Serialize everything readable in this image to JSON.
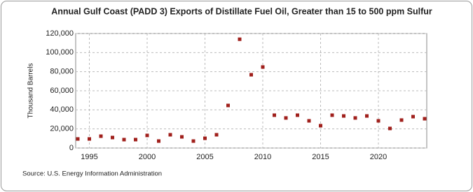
{
  "chart_data": {
    "type": "scatter",
    "title": "Annual Gulf Coast (PADD 3) Exports of Distillate Fuel Oil, Greater than 15 to 500 ppm Sulfur",
    "y_label": "Thousand Barrels",
    "source": "Source: U.S. Energy Information Administration",
    "color": "#a0201c",
    "grid": true,
    "x": [
      1994,
      1995,
      1996,
      1997,
      1998,
      1999,
      2000,
      2001,
      2002,
      2003,
      2004,
      2005,
      2006,
      2007,
      2008,
      2009,
      2010,
      2011,
      2012,
      2013,
      2014,
      2015,
      2016,
      2017,
      2018,
      2019,
      2020,
      2021,
      2022,
      2023,
      2024
    ],
    "values": [
      9500,
      9500,
      12400,
      11000,
      8800,
      8800,
      13200,
      7300,
      13900,
      11700,
      7300,
      10200,
      13900,
      44600,
      114000,
      76800,
      84900,
      34400,
      31500,
      34400,
      28500,
      23400,
      34400,
      33600,
      31500,
      33600,
      28500,
      20500,
      29300,
      32900,
      30700
    ],
    "xlim": [
      1994,
      2024
    ],
    "xticks": [
      1995,
      2000,
      2005,
      2010,
      2015,
      2020
    ],
    "ylim": [
      0,
      120000
    ],
    "yticks": [
      0,
      {
        "value": 20000,
        "label": "20,000"
      },
      {
        "value": 40000,
        "label": "40,000"
      },
      {
        "value": 60000,
        "label": "60,000"
      },
      {
        "value": 80000,
        "label": "80,000"
      },
      {
        "value": 100000,
        "label": "100,000"
      },
      {
        "value": 120000,
        "label": "120,000"
      }
    ]
  }
}
